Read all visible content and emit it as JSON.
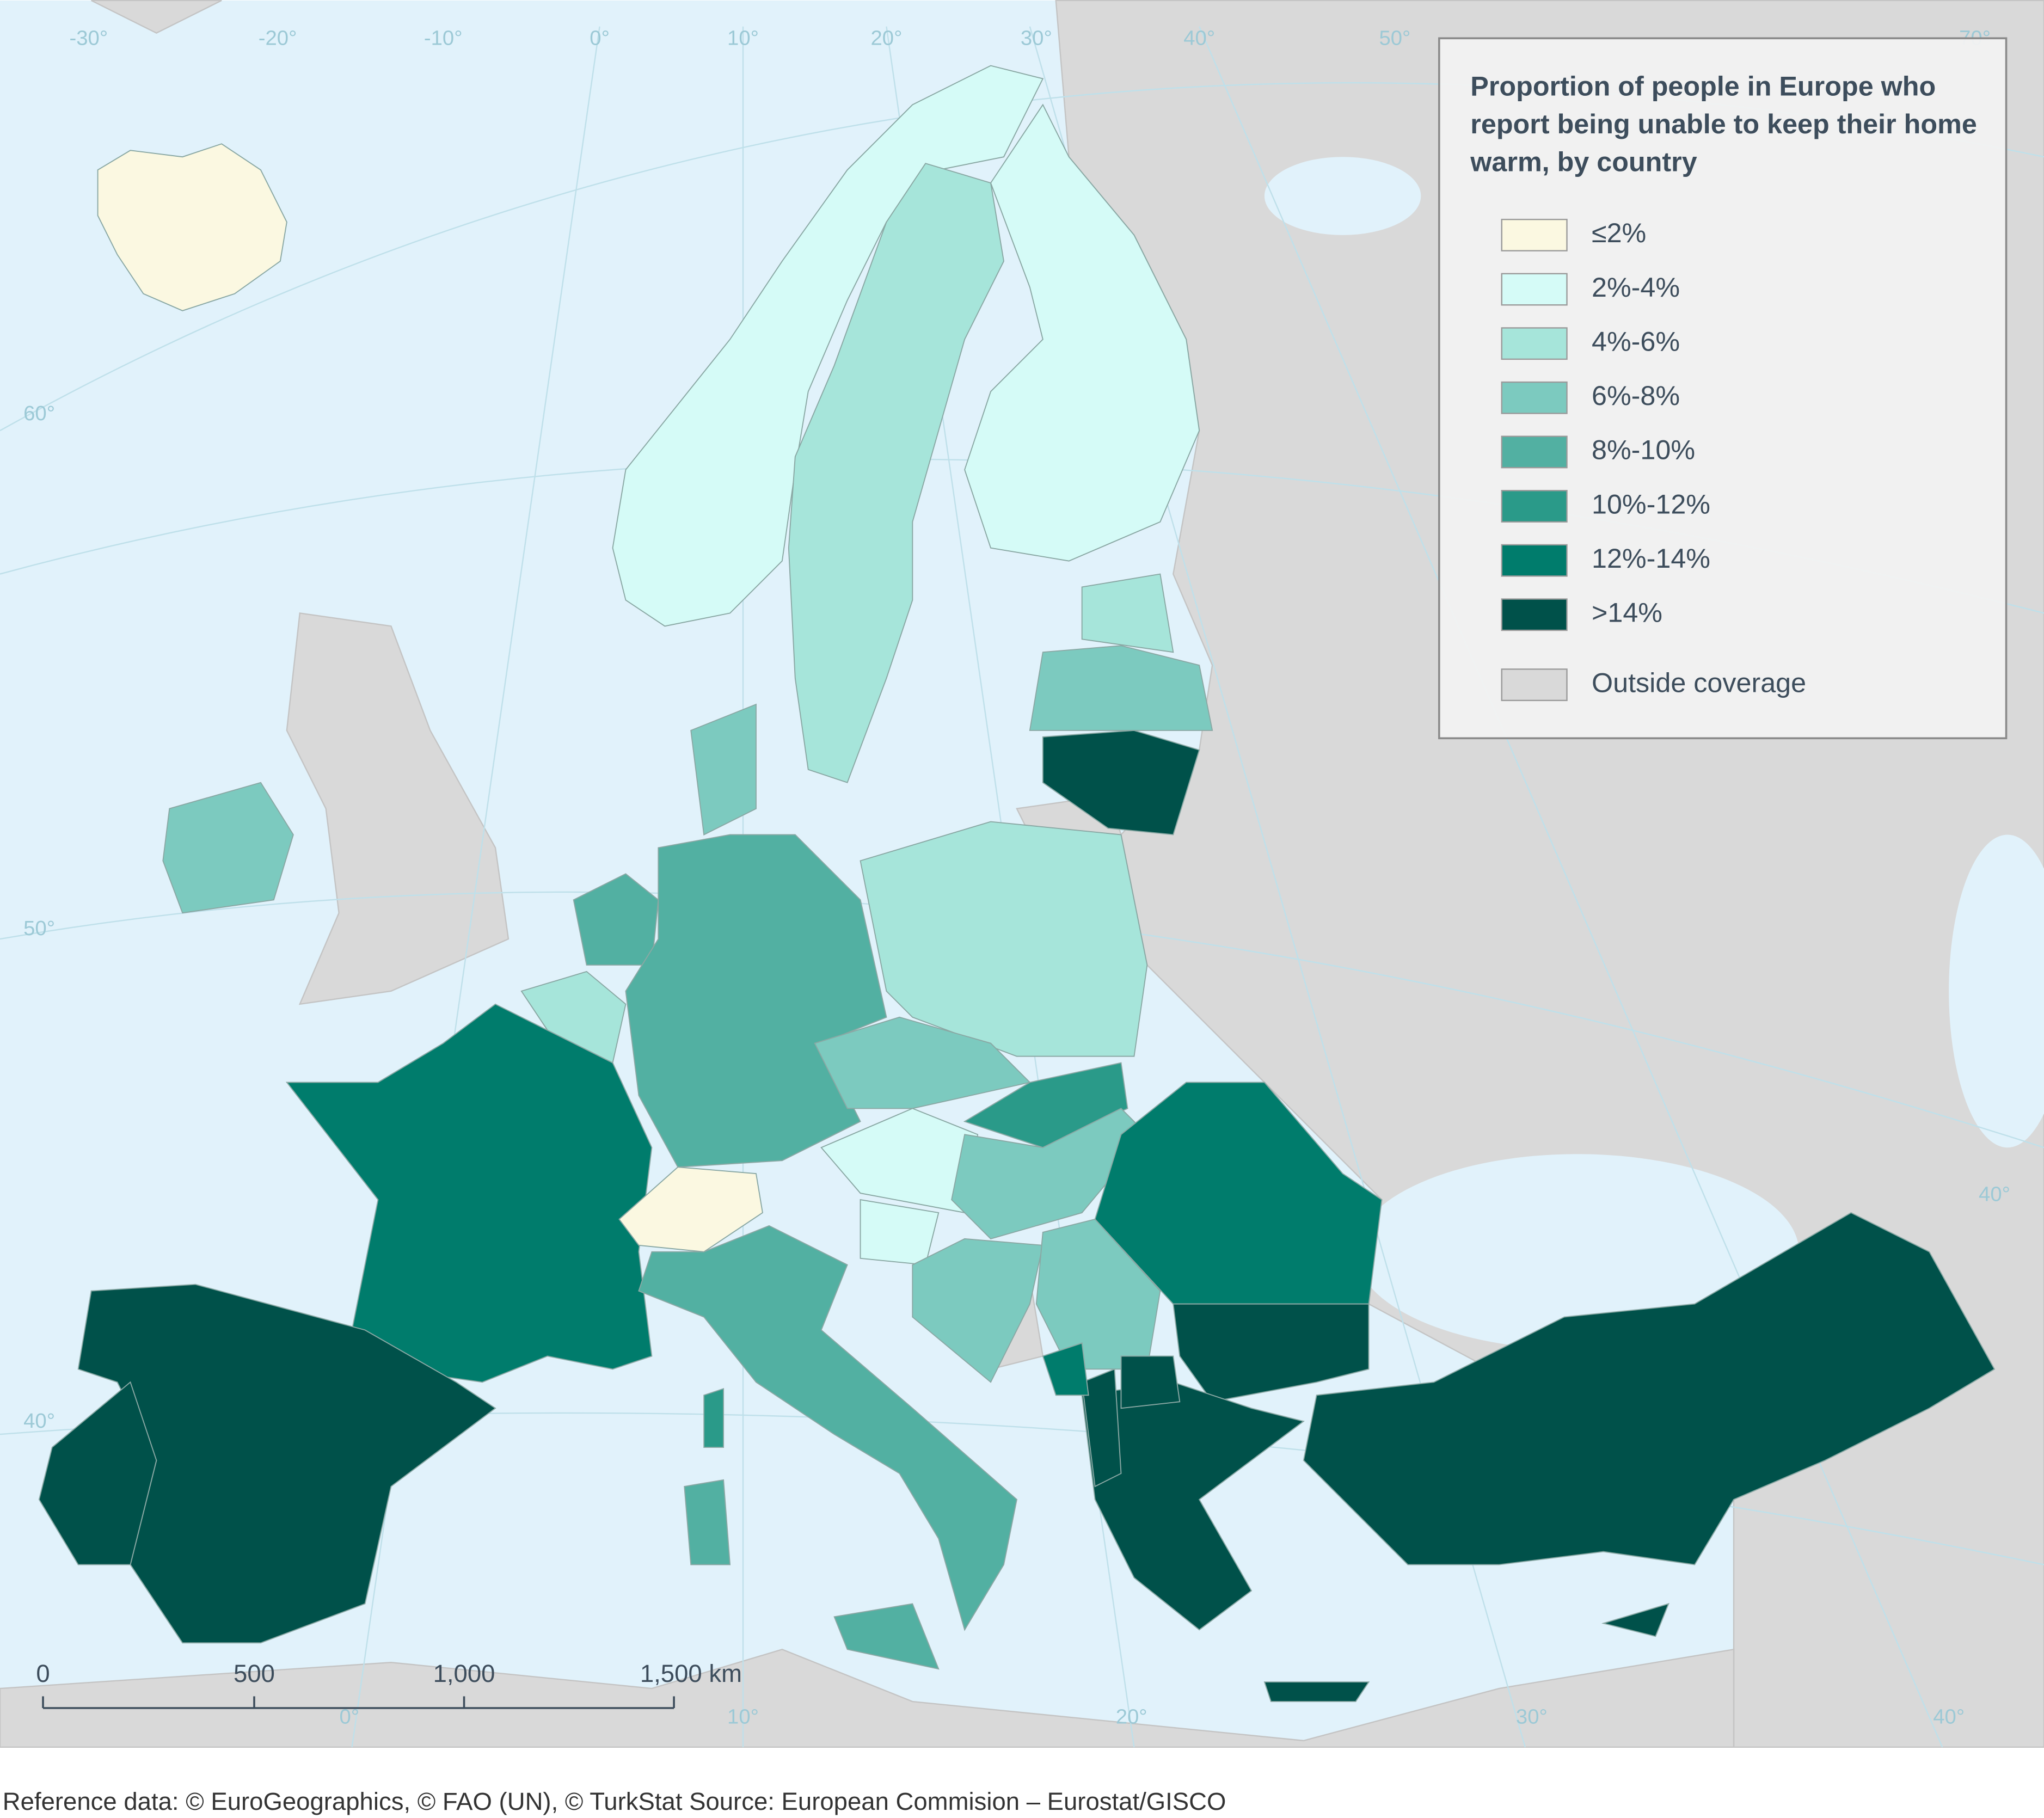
{
  "legend": {
    "title": "Proportion of people in Europe who report being unable to keep their home warm, by country",
    "items": [
      {
        "label": "≤2%",
        "color": "#fbf8e1"
      },
      {
        "label": "2%-4%",
        "color": "#d5fbf7"
      },
      {
        "label": "4%-6%",
        "color": "#a6e5da"
      },
      {
        "label": "6%-8%",
        "color": "#7ccabf"
      },
      {
        "label": "8%-10%",
        "color": "#52b0a2"
      },
      {
        "label": "10%-12%",
        "color": "#2a9a89"
      },
      {
        "label": "12%-14%",
        "color": "#007c6c"
      },
      {
        "label": ">14%",
        "color": "#00514a"
      }
    ],
    "outside": {
      "label": "Outside coverage",
      "color": "#d9d9d9"
    }
  },
  "scale_bar": [
    "0",
    "500",
    "1,000",
    "1,500 km"
  ],
  "graticule": {
    "top": [
      "-30°",
      "-20°",
      "-10°",
      "0°",
      "10°",
      "20°",
      "30°",
      "40°",
      "50°",
      "70°"
    ],
    "left": [
      "60°",
      "50°",
      "40°"
    ],
    "bottom": [
      "0°",
      "10°",
      "20°",
      "30°",
      "40°"
    ],
    "right": [
      "40°"
    ]
  },
  "source": "Reference data: © EuroGeographics, © FAO (UN), © TurkStat Source: European Commision – Eurostat/GISCO"
}
